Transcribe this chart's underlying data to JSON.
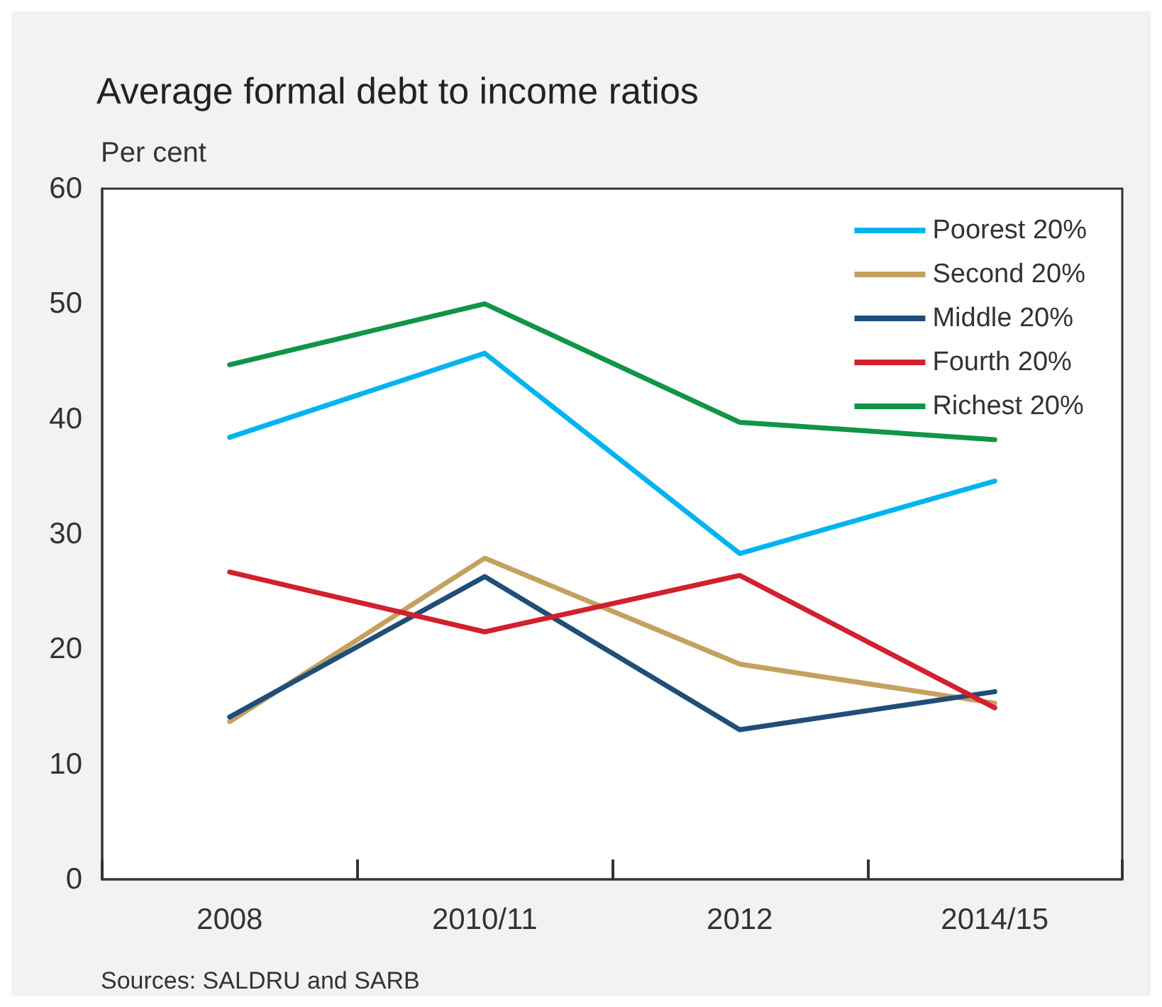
{
  "chart_data": {
    "type": "line",
    "title": "Average formal debt to income ratios",
    "ylabel": "Per cent",
    "categories": [
      "2008",
      "2010/11",
      "2012",
      "2014/15"
    ],
    "series": [
      {
        "name": "Poorest 20%",
        "color": "#00b4ef",
        "values": [
          38.4,
          45.7,
          28.3,
          34.6
        ]
      },
      {
        "name": "Second 20%",
        "color": "#c4a160",
        "values": [
          13.7,
          27.9,
          18.7,
          15.3
        ]
      },
      {
        "name": "Middle 20%",
        "color": "#1f4e79",
        "values": [
          14.1,
          26.3,
          13.0,
          16.3
        ]
      },
      {
        "name": "Fourth 20%",
        "color": "#d2202f",
        "values": [
          26.7,
          21.5,
          26.4,
          14.9
        ]
      },
      {
        "name": "Richest 20%",
        "color": "#119447",
        "values": [
          44.7,
          50.0,
          39.7,
          38.2
        ]
      }
    ],
    "ylim": [
      0,
      60
    ],
    "yticks": [
      0,
      10,
      20,
      30,
      40,
      50,
      60
    ],
    "grid": false,
    "legend": "top right",
    "marker": "none",
    "line_style": "solid",
    "annotations": [
      "Sources: SALDRU and SARB"
    ]
  }
}
